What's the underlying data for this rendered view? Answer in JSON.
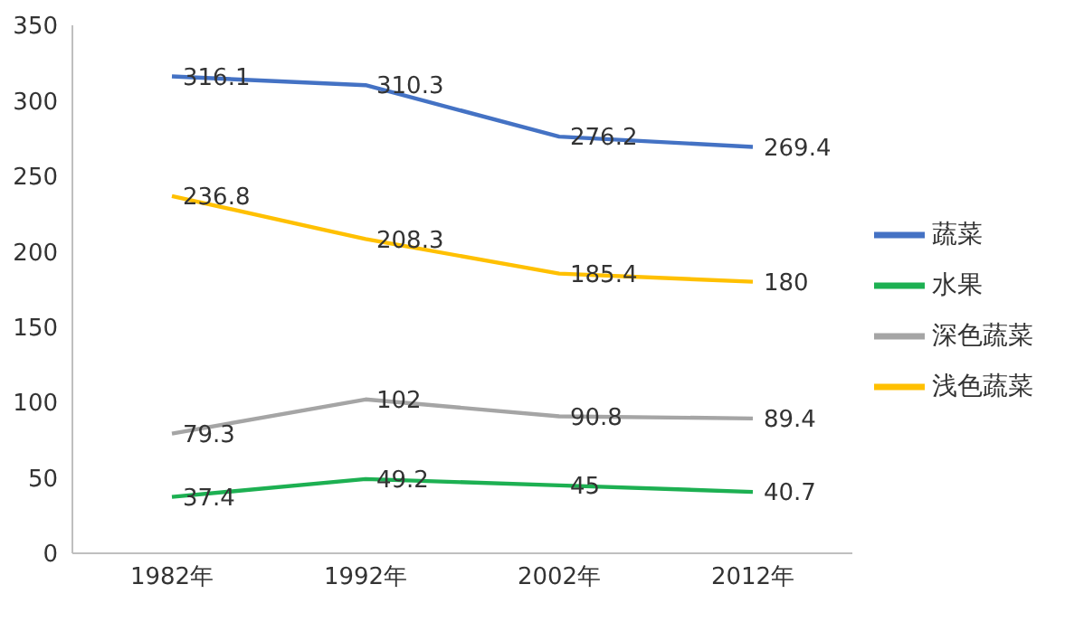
{
  "chart_data": {
    "type": "line",
    "categories": [
      "1982年",
      "1992年",
      "2002年",
      "2012年"
    ],
    "series": [
      {
        "name": "蔬菜",
        "color": "#4472c4",
        "values": [
          316.1,
          310.3,
          276.2,
          269.4
        ]
      },
      {
        "name": "水果",
        "color": "#1db052",
        "values": [
          37.4,
          49.2,
          45,
          40.7
        ]
      },
      {
        "name": "深色蔬菜",
        "color": "#a5a5a5",
        "values": [
          79.3,
          102,
          90.8,
          89.4
        ]
      },
      {
        "name": "浅色蔬菜",
        "color": "#ffc000",
        "values": [
          236.8,
          208.3,
          185.4,
          180
        ]
      }
    ],
    "ylim": [
      0,
      350
    ],
    "yticks": [
      0,
      50,
      100,
      150,
      200,
      250,
      300,
      350
    ],
    "grid": false,
    "legend": "right",
    "marker": "none",
    "line_style": "solid",
    "data_labels": true
  }
}
